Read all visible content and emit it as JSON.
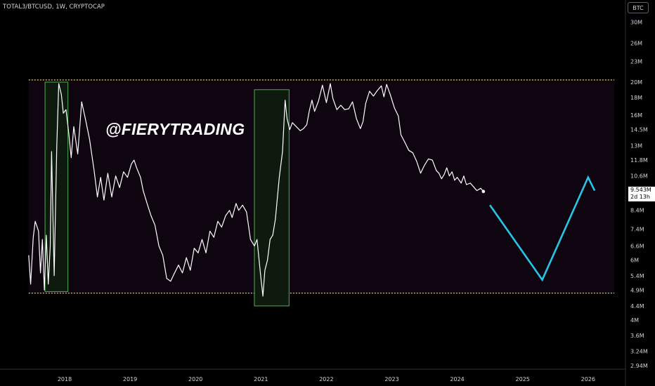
{
  "header": {
    "symbol_label": "TOTAL3/BTCUSD, 1W, CRYPTOCAP",
    "currency_button": "BTC"
  },
  "watermark": "@FIERYTRADING",
  "price_tag": {
    "value": "9.543M",
    "countdown": "2d 13h"
  },
  "colors": {
    "background": "#000000",
    "price_line": "#ffffff",
    "channel_fill": "#0e0510",
    "channel_border": "#f5d41f",
    "highlight_fill": "#0f1a0f",
    "highlight_border": "#4caf50",
    "projection": "#29c5e6",
    "axis_text": "#d1d4dc"
  },
  "chart_data": {
    "type": "line",
    "scale": "log",
    "x_unit": "year",
    "y_ticks": [
      {
        "label": "30M",
        "value": 30
      },
      {
        "label": "26M",
        "value": 26
      },
      {
        "label": "23M",
        "value": 23
      },
      {
        "label": "20M",
        "value": 20
      },
      {
        "label": "18M",
        "value": 18
      },
      {
        "label": "16M",
        "value": 16
      },
      {
        "label": "14.5M",
        "value": 14.5
      },
      {
        "label": "13M",
        "value": 13
      },
      {
        "label": "11.8M",
        "value": 11.8
      },
      {
        "label": "10.6M",
        "value": 10.6
      },
      {
        "label": "8.4M",
        "value": 8.4
      },
      {
        "label": "7.4M",
        "value": 7.4
      },
      {
        "label": "6.6M",
        "value": 6.6
      },
      {
        "label": "6M",
        "value": 6
      },
      {
        "label": "5.4M",
        "value": 5.4
      },
      {
        "label": "4.9M",
        "value": 4.9
      },
      {
        "label": "4.4M",
        "value": 4.4
      },
      {
        "label": "4M",
        "value": 4
      },
      {
        "label": "3.6M",
        "value": 3.6
      },
      {
        "label": "3.24M",
        "value": 3.24
      },
      {
        "label": "2.94M",
        "value": 2.94
      }
    ],
    "x_ticks": [
      {
        "label": "2018",
        "value": 2018
      },
      {
        "label": "2019",
        "value": 2019
      },
      {
        "label": "2020",
        "value": 2020
      },
      {
        "label": "2021",
        "value": 2021
      },
      {
        "label": "2022",
        "value": 2022
      },
      {
        "label": "2023",
        "value": 2023
      },
      {
        "label": "2024",
        "value": 2024
      },
      {
        "label": "2025",
        "value": 2025
      },
      {
        "label": "2026",
        "value": 2026
      }
    ],
    "series": [
      {
        "points": [
          [
            2017.45,
            6.2
          ],
          [
            2017.48,
            5.1
          ],
          [
            2017.52,
            7.0
          ],
          [
            2017.55,
            7.8
          ],
          [
            2017.6,
            7.3
          ],
          [
            2017.63,
            5.5
          ],
          [
            2017.66,
            6.9
          ],
          [
            2017.69,
            4.9
          ],
          [
            2017.72,
            7.1
          ],
          [
            2017.75,
            5.1
          ],
          [
            2017.78,
            6.6
          ],
          [
            2017.8,
            12.5
          ],
          [
            2017.84,
            5.4
          ],
          [
            2017.88,
            13.0
          ],
          [
            2017.91,
            19.8
          ],
          [
            2017.95,
            18.4
          ],
          [
            2017.98,
            16.2
          ],
          [
            2018.02,
            16.6
          ],
          [
            2018.06,
            14.3
          ],
          [
            2018.1,
            12.0
          ],
          [
            2018.14,
            14.8
          ],
          [
            2018.2,
            12.3
          ],
          [
            2018.26,
            17.5
          ],
          [
            2018.32,
            15.5
          ],
          [
            2018.38,
            13.6
          ],
          [
            2018.45,
            11.0
          ],
          [
            2018.5,
            9.2
          ],
          [
            2018.55,
            10.5
          ],
          [
            2018.6,
            9.0
          ],
          [
            2018.66,
            10.8
          ],
          [
            2018.72,
            9.2
          ],
          [
            2018.78,
            10.6
          ],
          [
            2018.84,
            9.8
          ],
          [
            2018.9,
            10.9
          ],
          [
            2018.96,
            10.5
          ],
          [
            2019.02,
            11.5
          ],
          [
            2019.06,
            11.8
          ],
          [
            2019.1,
            11.2
          ],
          [
            2019.16,
            10.5
          ],
          [
            2019.2,
            9.6
          ],
          [
            2019.26,
            8.8
          ],
          [
            2019.32,
            8.1
          ],
          [
            2019.38,
            7.6
          ],
          [
            2019.44,
            6.6
          ],
          [
            2019.5,
            6.2
          ],
          [
            2019.56,
            5.3
          ],
          [
            2019.62,
            5.2
          ],
          [
            2019.68,
            5.5
          ],
          [
            2019.74,
            5.8
          ],
          [
            2019.8,
            5.5
          ],
          [
            2019.86,
            6.1
          ],
          [
            2019.92,
            5.6
          ],
          [
            2019.98,
            6.5
          ],
          [
            2020.04,
            6.3
          ],
          [
            2020.1,
            6.9
          ],
          [
            2020.16,
            6.3
          ],
          [
            2020.22,
            7.3
          ],
          [
            2020.28,
            7.0
          ],
          [
            2020.34,
            7.8
          ],
          [
            2020.4,
            7.5
          ],
          [
            2020.46,
            8.1
          ],
          [
            2020.52,
            8.4
          ],
          [
            2020.56,
            8.0
          ],
          [
            2020.62,
            8.8
          ],
          [
            2020.66,
            8.4
          ],
          [
            2020.72,
            8.7
          ],
          [
            2020.78,
            8.3
          ],
          [
            2020.84,
            6.9
          ],
          [
            2020.9,
            6.6
          ],
          [
            2020.94,
            6.9
          ],
          [
            2021.0,
            5.3
          ],
          [
            2021.03,
            4.7
          ],
          [
            2021.06,
            5.6
          ],
          [
            2021.1,
            6.0
          ],
          [
            2021.14,
            6.9
          ],
          [
            2021.18,
            7.1
          ],
          [
            2021.22,
            7.9
          ],
          [
            2021.28,
            10.5
          ],
          [
            2021.33,
            12.5
          ],
          [
            2021.37,
            17.7
          ],
          [
            2021.4,
            15.6
          ],
          [
            2021.44,
            14.5
          ],
          [
            2021.48,
            15.2
          ],
          [
            2021.54,
            14.8
          ],
          [
            2021.6,
            14.4
          ],
          [
            2021.65,
            14.6
          ],
          [
            2021.7,
            15.0
          ],
          [
            2021.74,
            16.5
          ],
          [
            2021.78,
            17.7
          ],
          [
            2021.82,
            16.4
          ],
          [
            2021.88,
            17.6
          ],
          [
            2021.94,
            19.6
          ],
          [
            2022.0,
            17.4
          ],
          [
            2022.06,
            19.8
          ],
          [
            2022.1,
            17.9
          ],
          [
            2022.16,
            16.6
          ],
          [
            2022.22,
            17.1
          ],
          [
            2022.28,
            16.6
          ],
          [
            2022.34,
            16.7
          ],
          [
            2022.4,
            17.5
          ],
          [
            2022.46,
            15.6
          ],
          [
            2022.52,
            14.6
          ],
          [
            2022.56,
            15.3
          ],
          [
            2022.6,
            17.3
          ],
          [
            2022.66,
            18.8
          ],
          [
            2022.72,
            18.2
          ],
          [
            2022.78,
            18.9
          ],
          [
            2022.84,
            19.5
          ],
          [
            2022.88,
            18.1
          ],
          [
            2022.92,
            19.7
          ],
          [
            2022.98,
            18.3
          ],
          [
            2023.04,
            16.8
          ],
          [
            2023.1,
            15.9
          ],
          [
            2023.14,
            14.0
          ],
          [
            2023.2,
            13.3
          ],
          [
            2023.26,
            12.6
          ],
          [
            2023.32,
            12.4
          ],
          [
            2023.38,
            11.7
          ],
          [
            2023.44,
            10.8
          ],
          [
            2023.5,
            11.4
          ],
          [
            2023.56,
            11.9
          ],
          [
            2023.62,
            11.8
          ],
          [
            2023.68,
            11.0
          ],
          [
            2023.72,
            10.8
          ],
          [
            2023.76,
            10.4
          ],
          [
            2023.8,
            10.7
          ],
          [
            2023.84,
            11.2
          ],
          [
            2023.88,
            10.6
          ],
          [
            2023.92,
            10.9
          ],
          [
            2023.96,
            10.3
          ],
          [
            2024.0,
            10.5
          ],
          [
            2024.06,
            10.1
          ],
          [
            2024.1,
            10.6
          ],
          [
            2024.14,
            10.0
          ],
          [
            2024.2,
            10.1
          ],
          [
            2024.26,
            9.8
          ],
          [
            2024.3,
            9.6
          ],
          [
            2024.36,
            9.75
          ],
          [
            2024.4,
            9.543
          ]
        ]
      }
    ],
    "channel": {
      "start": 2017.45,
      "end": 2026.4,
      "upper": 20.3,
      "lower": 4.8
    },
    "highlight_zones": [
      {
        "from": 2017.7,
        "to": 2018.05,
        "top": 20.0,
        "bottom": 4.85
      },
      {
        "from": 2020.9,
        "to": 2021.43,
        "top": 19.0,
        "bottom": 4.4
      }
    ],
    "projection": [
      [
        2024.5,
        8.7
      ],
      [
        2025.3,
        5.25
      ],
      [
        2026.0,
        10.5
      ],
      [
        2026.1,
        9.6
      ]
    ],
    "last_value": 9.543
  }
}
